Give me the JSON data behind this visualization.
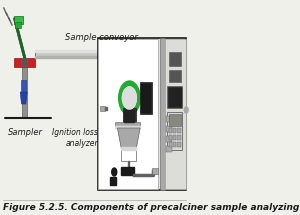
{
  "title": "Figure 5.2.5. Components of precalciner sample analyzing system.",
  "title_fontsize": 6.5,
  "bg_color": "#f0f0eb",
  "figure_bg": "#f0f0eb",
  "labels": {
    "sample_conveyor": "Sample conveyor",
    "sampler": "Sampler",
    "ignition_loss": "Ignition loss\nanalyzer"
  },
  "label_fontsize": 6.0,
  "label_fontsize_small": 5.5
}
